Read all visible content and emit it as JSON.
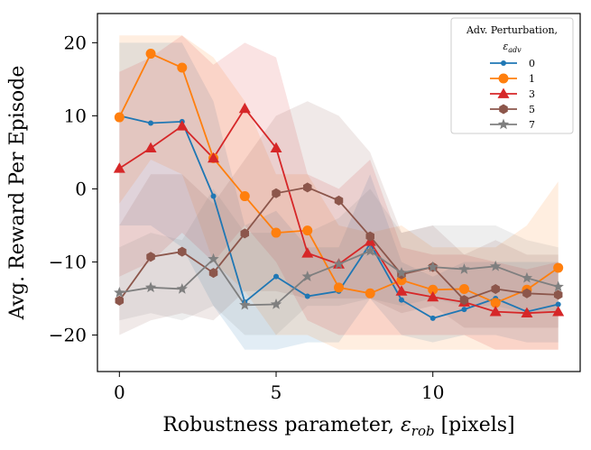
{
  "chart_data": {
    "type": "line",
    "xlabel_text": "Robustness parameter, ",
    "xlabel_symbol": "ε",
    "xlabel_sub": "rob",
    "xlabel_unit": " [pixels]",
    "ylabel": "Avg. Reward Per Episode",
    "xlim": [
      -0.7,
      14.7
    ],
    "ylim": [
      -25,
      24
    ],
    "x_ticks": [
      0,
      5,
      10
    ],
    "x_tick_labels": [
      "0",
      "5",
      "10"
    ],
    "y_ticks": [
      -20,
      -10,
      0,
      10,
      20
    ],
    "y_tick_labels": [
      "−20",
      "−10",
      "0",
      "10",
      "20"
    ],
    "legend": {
      "title_line1": "Adv. Perturbation,",
      "title_symbol": "ε",
      "title_sub": "adv",
      "position": "top-right"
    },
    "x": [
      0,
      1,
      2,
      3,
      4,
      5,
      6,
      7,
      8,
      9,
      10,
      11,
      12,
      13,
      14
    ],
    "series": [
      {
        "name": "0",
        "color": "#1f77b4",
        "marker": "dot",
        "values": [
          10.0,
          9.0,
          9.2,
          -1.0,
          -15.5,
          -12.0,
          -14.7,
          -14.0,
          -7.5,
          -15.2,
          -17.7,
          -16.5,
          -15.0,
          -16.8,
          -15.8
        ],
        "lower": [
          -5,
          -5,
          -8,
          -16,
          -22,
          -22,
          -21,
          -21,
          -15,
          -20,
          -21,
          -20,
          -20,
          -21,
          -21
        ],
        "upper": [
          20,
          20,
          20,
          12,
          -5,
          -3,
          -8,
          -8,
          2,
          -10,
          -12,
          -10,
          -10,
          -10,
          -10
        ]
      },
      {
        "name": "1",
        "color": "#ff7f0e",
        "marker": "circle",
        "values": [
          9.8,
          18.5,
          16.6,
          4.2,
          -1.0,
          -6.0,
          -5.7,
          -13.5,
          -14.3,
          -12.5,
          -13.8,
          -13.7,
          -15.6,
          -13.8,
          -10.8
        ],
        "lower": [
          -2,
          4,
          2,
          -10,
          -14,
          -20,
          -20,
          -22,
          -22,
          -22,
          -22,
          -22,
          -22,
          -22,
          -22
        ],
        "upper": [
          21,
          21,
          21,
          18,
          12,
          2,
          2,
          -5,
          -6,
          -5,
          -8,
          -8,
          -8,
          -5,
          1
        ]
      },
      {
        "name": "3",
        "color": "#d62728",
        "marker": "triangle",
        "values": [
          2.8,
          5.6,
          8.6,
          4.2,
          11.0,
          5.6,
          -8.8,
          -10.3,
          -7.2,
          -14.0,
          -14.8,
          -15.5,
          -16.8,
          -17.0,
          -16.8
        ],
        "lower": [
          -12,
          -10,
          -6,
          -10,
          -5,
          -10,
          -18,
          -20,
          -20,
          -20,
          -20,
          -20,
          -22,
          -22,
          -22
        ],
        "upper": [
          16,
          18,
          21,
          17,
          20,
          18,
          2,
          0,
          4,
          -8,
          -9,
          -9,
          -10,
          -11,
          -10
        ]
      },
      {
        "name": "5",
        "color": "#8c564b",
        "marker": "hexagon",
        "values": [
          -15.3,
          -9.3,
          -8.6,
          -11.5,
          -6.1,
          -0.6,
          0.2,
          -1.6,
          -6.5,
          -11.7,
          -10.7,
          -15.2,
          -13.7,
          -14.3,
          -14.5
        ],
        "lower": [
          -20,
          -18,
          -17,
          -18,
          -14,
          -14,
          -15,
          -15,
          -15,
          -17,
          -16,
          -19,
          -19,
          -19,
          -19
        ],
        "upper": [
          -5,
          2,
          2,
          -2,
          4,
          10,
          12,
          10,
          5,
          -6,
          -5,
          -9,
          -7,
          -9,
          -9
        ]
      },
      {
        "name": "7",
        "color": "#7f7f7f",
        "marker": "star",
        "values": [
          -14.2,
          -13.5,
          -13.7,
          -9.6,
          -15.9,
          -15.8,
          -12.0,
          -10.3,
          -8.5,
          -11.5,
          -10.7,
          -11.0,
          -10.6,
          -12.2,
          -13.4
        ],
        "lower": [
          -18,
          -17,
          -18,
          -16,
          -20,
          -20,
          -16,
          -16,
          -15,
          -16,
          -15,
          -16,
          -16,
          -17,
          -17
        ],
        "upper": [
          -8,
          -6,
          -7,
          0,
          -6,
          -6,
          -6,
          -4,
          0,
          -6,
          -5,
          -5,
          -5,
          -7,
          -8
        ]
      }
    ]
  }
}
